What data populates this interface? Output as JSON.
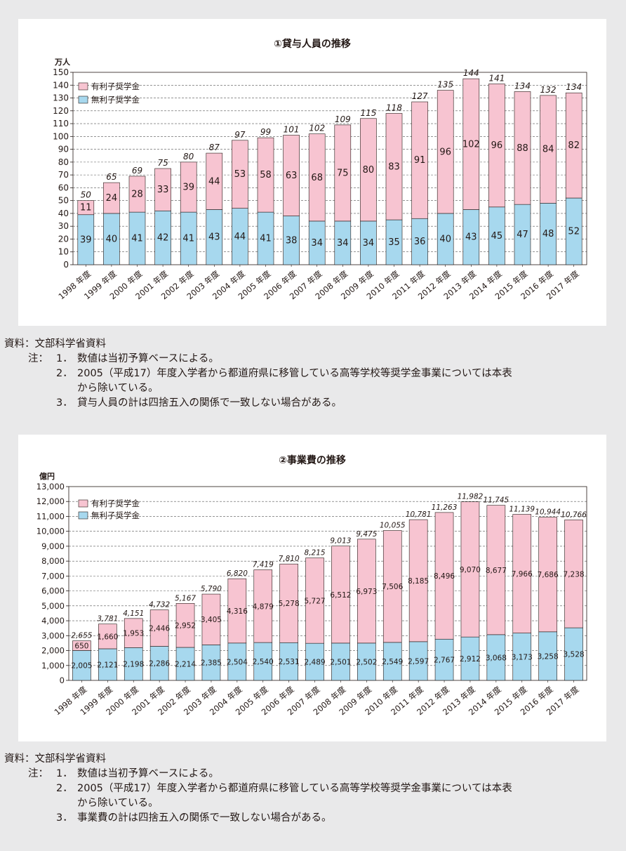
{
  "colors": {
    "pink": "#f7c4d1",
    "blue": "#a7d8ee",
    "panel": "#ffffff",
    "page": "#e9e9ea"
  },
  "charts": [
    {
      "title": "①貸与人員の推移",
      "unit": "万人",
      "legend_interest": "有利子奨学金",
      "legend_free": "無利子奨学金"
    },
    {
      "title": "②事業費の推移",
      "unit": "億円",
      "legend_interest": "有利子奨学金",
      "legend_free": "無利子奨学金"
    }
  ],
  "chart_data": [
    {
      "type": "bar",
      "stacked": true,
      "title": "①貸与人員の推移",
      "ylabel": "万人",
      "ylim": [
        0,
        150
      ],
      "yticks": [
        0,
        10,
        20,
        30,
        40,
        50,
        60,
        70,
        80,
        90,
        100,
        110,
        120,
        130,
        140,
        150
      ],
      "categories": [
        "1998 年度",
        "1999 年度",
        "2000 年度",
        "2001 年度",
        "2002 年度",
        "2003 年度",
        "2004 年度",
        "2005 年度",
        "2006 年度",
        "2007 年度",
        "2008 年度",
        "2009 年度",
        "2010 年度",
        "2011 年度",
        "2012 年度",
        "2013 年度",
        "2014 年度",
        "2015 年度",
        "2016 年度",
        "2017 年度"
      ],
      "series": [
        {
          "name": "無利子奨学金",
          "values": [
            39,
            40,
            41,
            42,
            41,
            43,
            44,
            41,
            38,
            34,
            34,
            34,
            35,
            36,
            40,
            43,
            45,
            47,
            48,
            52
          ]
        },
        {
          "name": "有利子奨学金",
          "values": [
            11,
            24,
            28,
            33,
            39,
            44,
            53,
            58,
            63,
            68,
            75,
            80,
            83,
            91,
            96,
            102,
            96,
            88,
            84,
            82
          ]
        }
      ],
      "totals": [
        50,
        65,
        69,
        75,
        80,
        87,
        97,
        99,
        101,
        102,
        109,
        115,
        118,
        127,
        135,
        144,
        141,
        134,
        132,
        134
      ],
      "legend": "top-left",
      "grid": true
    },
    {
      "type": "bar",
      "stacked": true,
      "title": "②事業費の推移",
      "ylabel": "億円",
      "ylim": [
        0,
        13000
      ],
      "yticks": [
        0,
        1000,
        2000,
        3000,
        4000,
        5000,
        6000,
        7000,
        8000,
        9000,
        10000,
        11000,
        12000,
        13000
      ],
      "categories": [
        "1998 年度",
        "1999 年度",
        "2000 年度",
        "2001 年度",
        "2002 年度",
        "2003 年度",
        "2004 年度",
        "2005 年度",
        "2006 年度",
        "2007 年度",
        "2008 年度",
        "2009 年度",
        "2010 年度",
        "2011 年度",
        "2012 年度",
        "2013 年度",
        "2014 年度",
        "2015 年度",
        "2016 年度",
        "2017 年度"
      ],
      "series": [
        {
          "name": "無利子奨学金",
          "values": [
            2005,
            2121,
            2198,
            2286,
            2214,
            2385,
            2504,
            2540,
            2531,
            2489,
            2501,
            2502,
            2549,
            2597,
            2767,
            2912,
            3068,
            3173,
            3258,
            3528
          ]
        },
        {
          "name": "有利子奨学金",
          "values": [
            650,
            1660,
            1953,
            2446,
            2952,
            3405,
            4316,
            4879,
            5278,
            5727,
            6512,
            6973,
            7506,
            8185,
            8496,
            9070,
            8677,
            7966,
            7686,
            7238
          ]
        }
      ],
      "totals": [
        2655,
        3781,
        4151,
        4732,
        5167,
        5790,
        6820,
        7419,
        7810,
        8215,
        9013,
        9475,
        10055,
        10781,
        11263,
        11982,
        11745,
        11139,
        10944,
        10766
      ],
      "legend": "top-left",
      "grid": true
    }
  ],
  "notes": [
    {
      "source": "資料：文部科学省資料",
      "label": "注：",
      "items": [
        {
          "num": "1．",
          "text": "数値は当初予算ベースによる。"
        },
        {
          "num": "2．",
          "text": "2005（平成17）年度入学者から都道府県に移管している高等学校等奨学金事業については本表",
          "cont": "から除いている。"
        },
        {
          "num": "3．",
          "text": "貸与人員の計は四捨五入の関係で一致しない場合がある。"
        }
      ]
    },
    {
      "source": "資料：文部科学省資料",
      "label": "注：",
      "items": [
        {
          "num": "1．",
          "text": "数値は当初予算ベースによる。"
        },
        {
          "num": "2．",
          "text": "2005（平成17）年度入学者から都道府県に移管している高等学校等奨学金事業については本表",
          "cont": "から除いている。"
        },
        {
          "num": "3．",
          "text": "事業費の計は四捨五入の関係で一致しない場合がある。"
        }
      ]
    }
  ]
}
